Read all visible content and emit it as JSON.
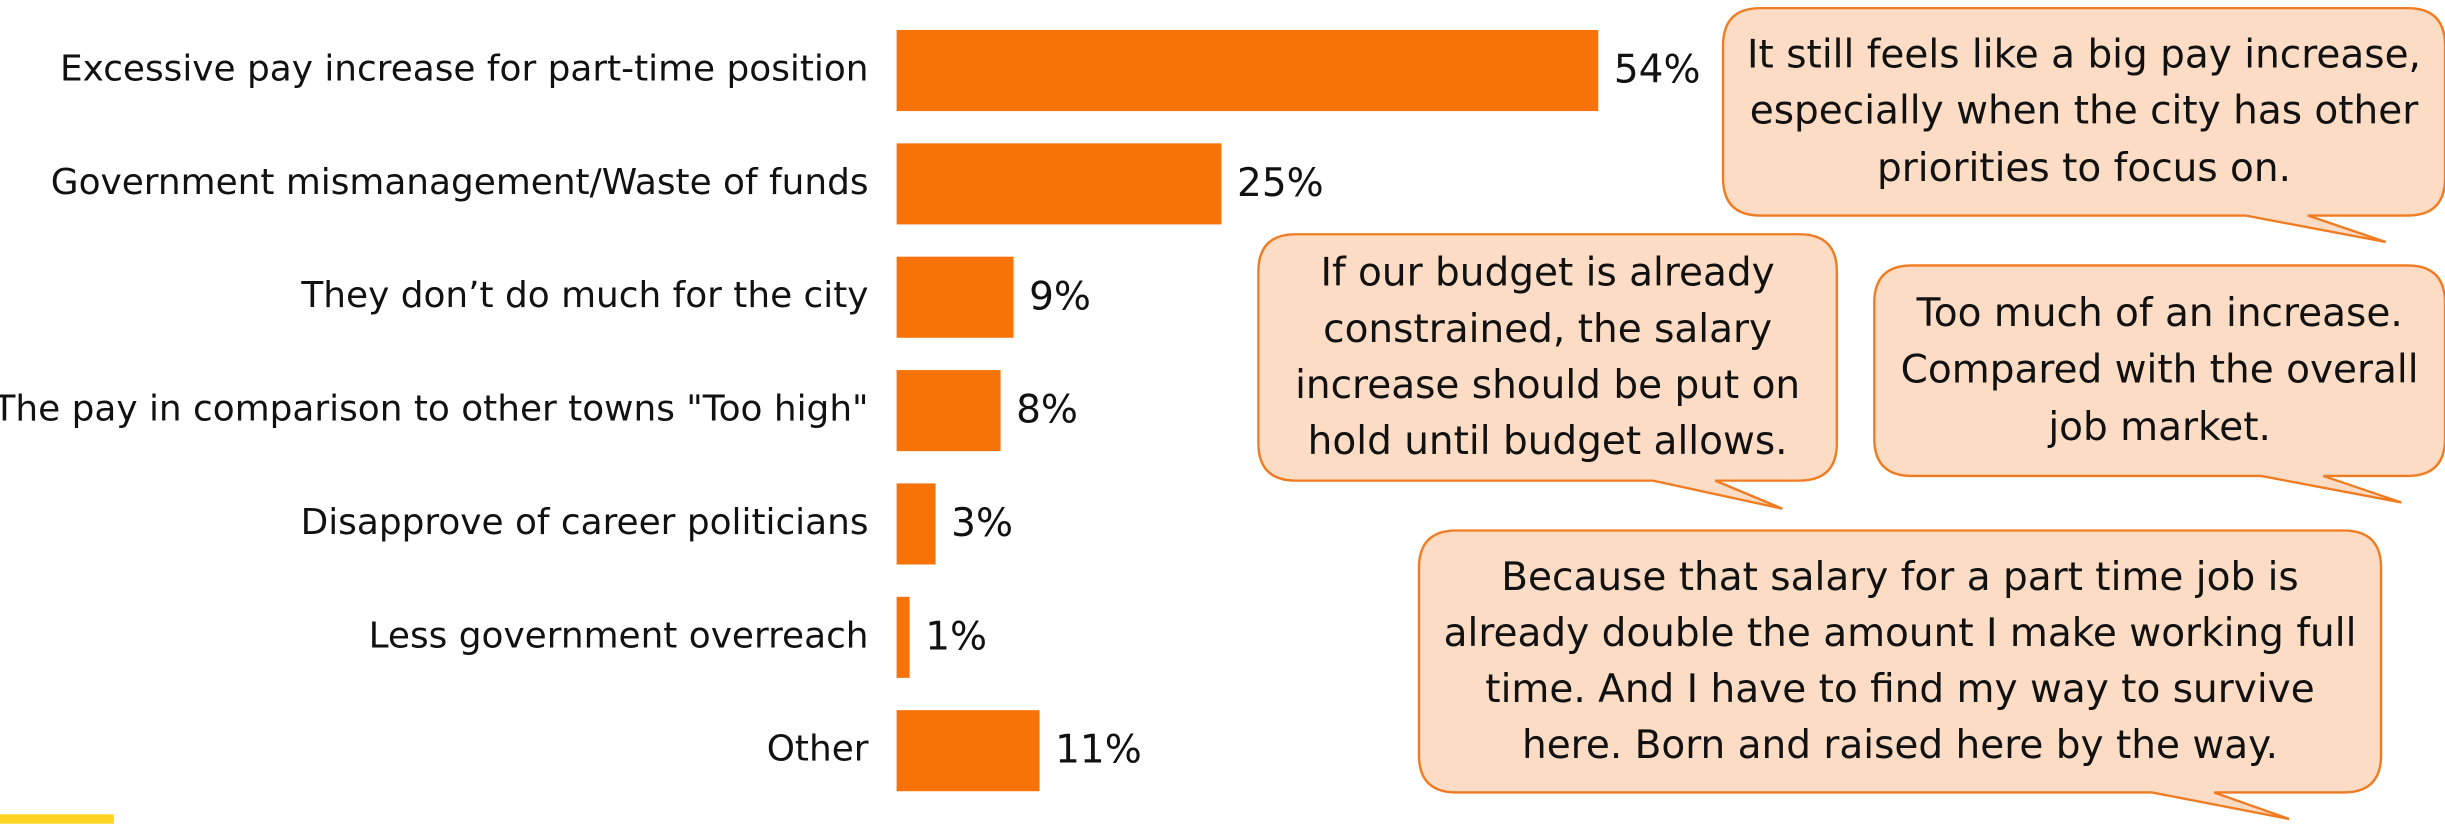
{
  "chart_data": {
    "type": "bar",
    "orientation": "horizontal",
    "color": "#f77308",
    "categories": [
      "Excessive pay increase for part-time position",
      "Government mismanagement/Waste of funds",
      "They don’t do much for the city",
      "The pay in comparison to other towns \"Too high\"",
      "Disapprove of career politicians",
      "Less government overreach",
      "Other"
    ],
    "values": [
      54,
      25,
      9,
      8,
      3,
      1,
      11
    ],
    "value_labels": [
      "54%",
      "25%",
      "9%",
      "8%",
      "3%",
      "1%",
      "11%"
    ],
    "annotations": [
      "It still feels like a big pay increase, especially when the city has other priorities to focus on.",
      "If our budget is already constrained, the salary increase should be put on hold until budget allows.",
      "Too much of an increase. Compared with the overall job market.",
      "Because that salary for a part time job is already double the amount I make working full time. And I have to find my way to survive here. Born and raised here by the way."
    ]
  }
}
